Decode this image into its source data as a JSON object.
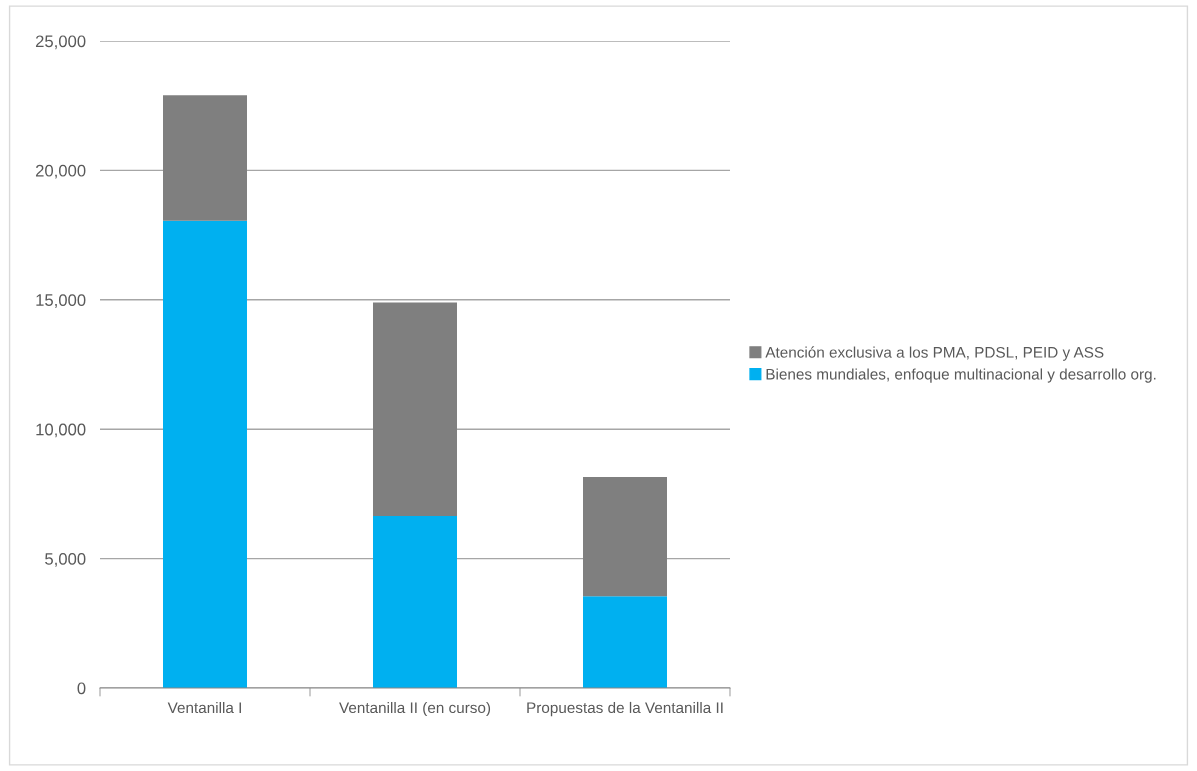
{
  "chart_data": {
    "type": "bar",
    "stacked": true,
    "categories": [
      "Ventanilla I",
      "Ventanilla II (en curso)",
      "Propuestas de la Ventanilla II"
    ],
    "series": [
      {
        "name": "Bienes mundiales, enfoque multinacional y desarrollo org.",
        "color": "#00b0f0",
        "values": [
          18050,
          6650,
          3550
        ]
      },
      {
        "name": "Atención exclusiva a los PMA, PDSL, PEID y ASS",
        "color": "#7f7f7f",
        "values": [
          4850,
          8250,
          4600
        ]
      }
    ],
    "ylim": [
      0,
      25000
    ],
    "yticks": [
      {
        "value": 0,
        "label": "0"
      },
      {
        "value": 5000,
        "label": "5,000"
      },
      {
        "value": 10000,
        "label": "10,000"
      },
      {
        "value": 15000,
        "label": "15,000"
      },
      {
        "value": 20000,
        "label": "20,000"
      },
      {
        "value": 25000,
        "label": "25,000"
      }
    ],
    "grid": "y",
    "legend": "right"
  }
}
